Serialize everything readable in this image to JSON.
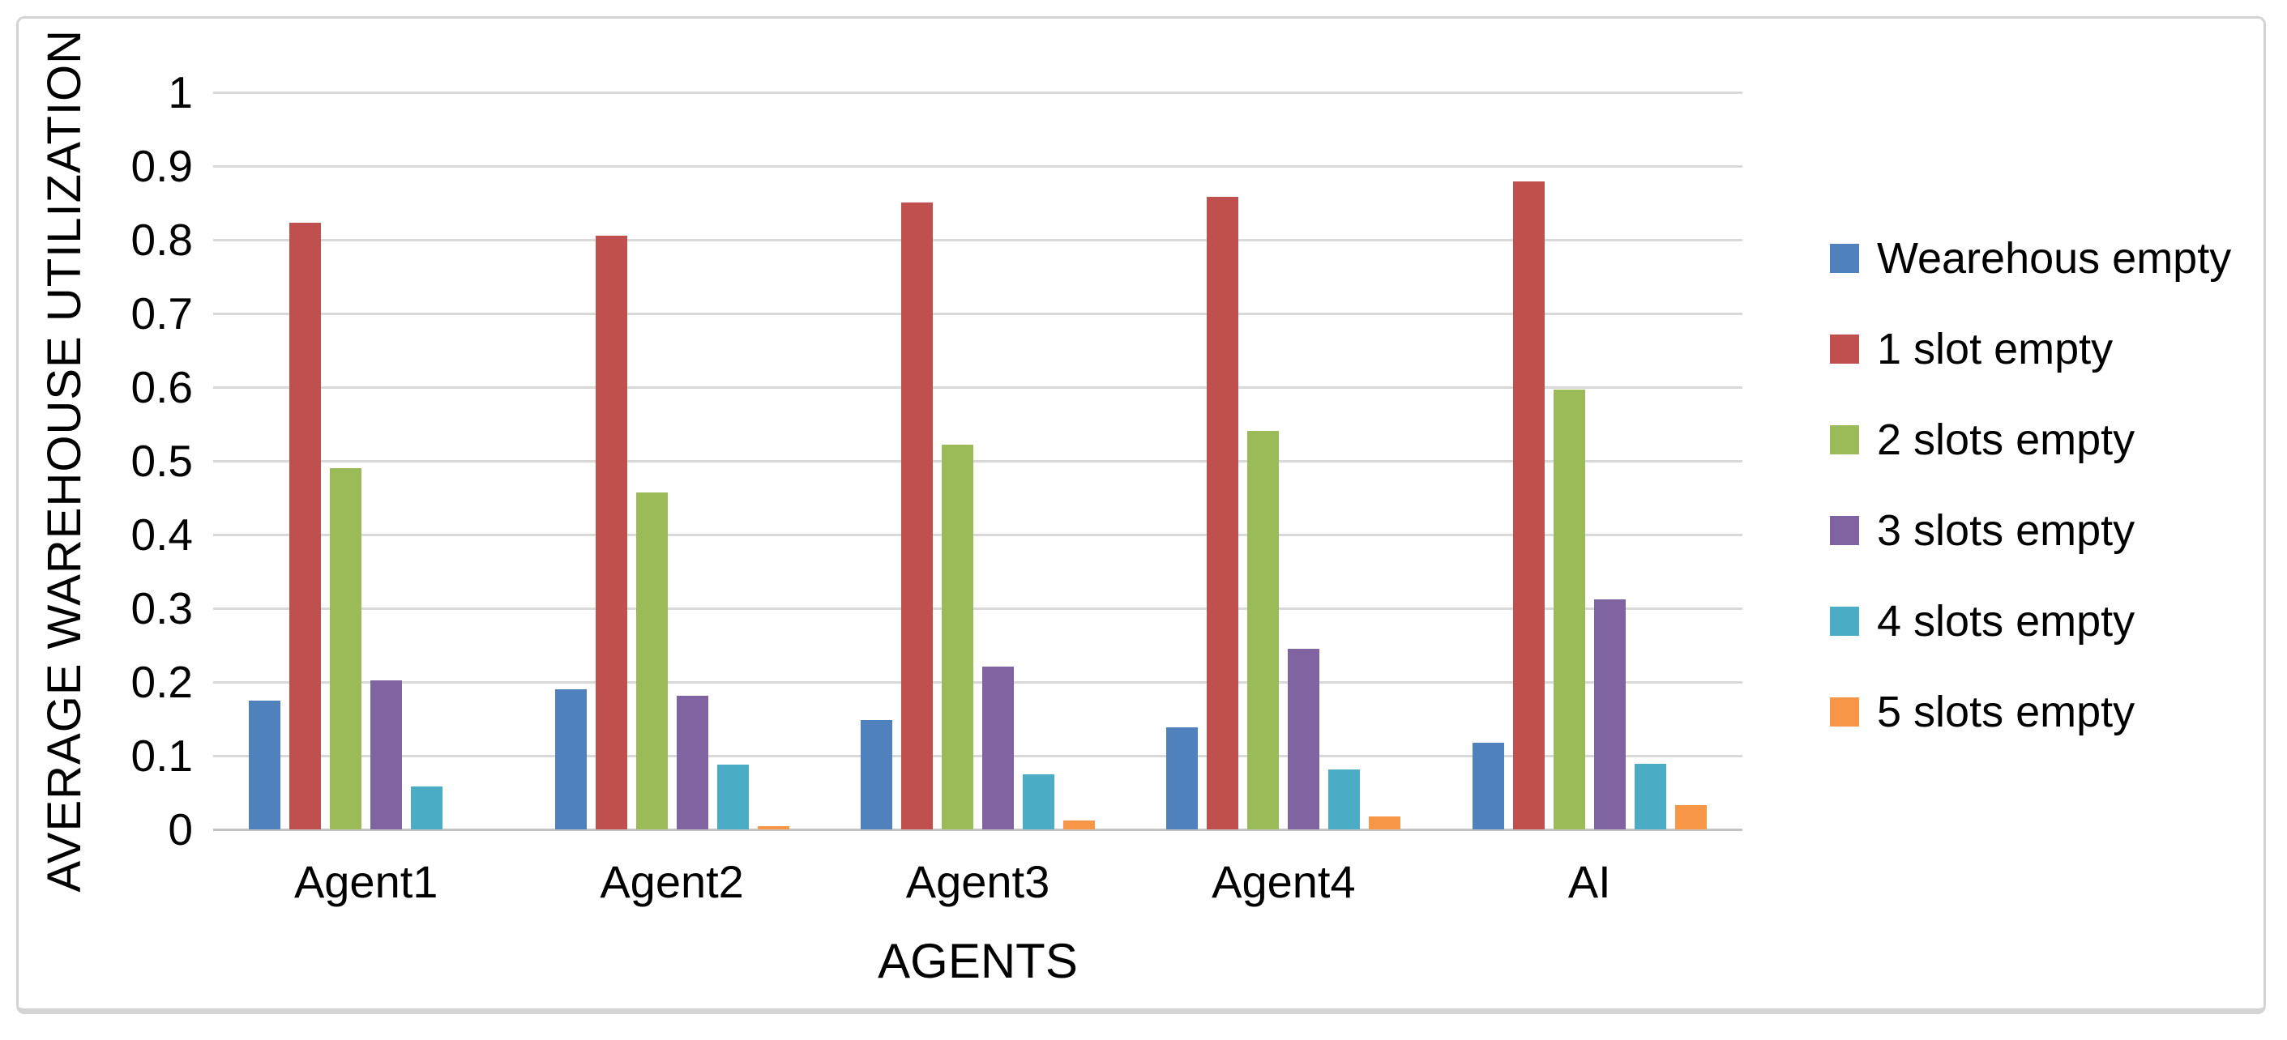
{
  "chart_data": {
    "type": "bar",
    "title": "",
    "categories": [
      "Agent1",
      "Agent2",
      "Agent3",
      "Agent4",
      "AI"
    ],
    "series": [
      {
        "name": "Wearehous empty",
        "color": "#4F81BD",
        "values": [
          0.175,
          0.19,
          0.148,
          0.139,
          0.118
        ]
      },
      {
        "name": "1 slot empty",
        "color": "#C0504D",
        "values": [
          0.823,
          0.806,
          0.85,
          0.858,
          0.879
        ]
      },
      {
        "name": "2 slots empty",
        "color": "#9BBB59",
        "values": [
          0.49,
          0.457,
          0.522,
          0.541,
          0.597
        ]
      },
      {
        "name": "3 slots empty",
        "color": "#8064A2",
        "values": [
          0.202,
          0.181,
          0.221,
          0.245,
          0.312
        ]
      },
      {
        "name": "4 slots empty",
        "color": "#4BACC6",
        "values": [
          0.058,
          0.088,
          0.075,
          0.081,
          0.089
        ]
      },
      {
        "name": "5 slots empty",
        "color": "#F79646",
        "values": [
          0.0,
          0.004,
          0.012,
          0.018,
          0.033
        ]
      }
    ],
    "xlabel": "AGENTS",
    "ylabel": "AVERAGE WAREHOUSE UTILIZATION",
    "ylim": [
      0,
      1
    ],
    "y_tick_labels": [
      "1",
      "0.9",
      "0.8",
      "0.7",
      "0.6",
      "0.5",
      "0.4",
      "0.3",
      "0.2",
      "0.1",
      "0"
    ],
    "grid": true,
    "gridline_color": "#d9d9d9",
    "baseline_color": "#c3c3c3",
    "legend_position": "right"
  }
}
